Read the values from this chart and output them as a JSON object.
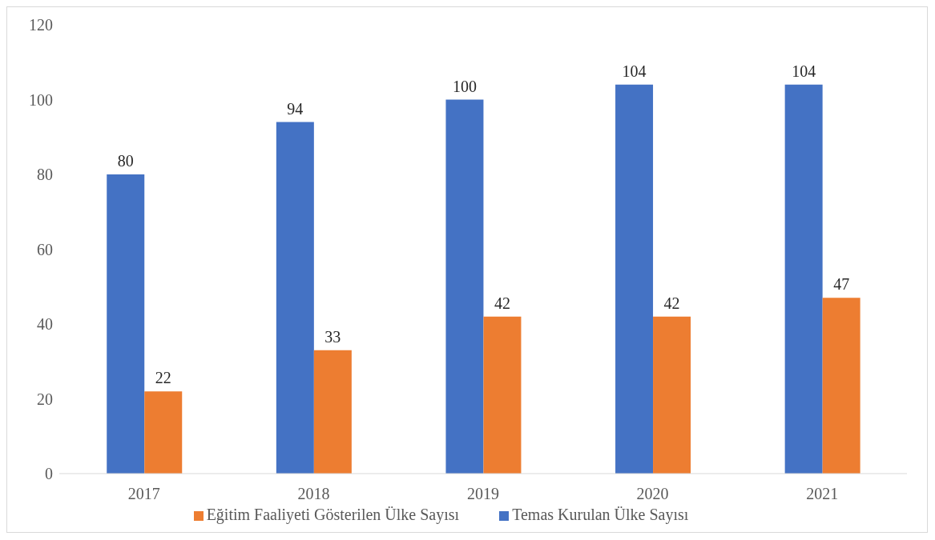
{
  "chart_data": {
    "type": "bar",
    "categories": [
      "2017",
      "2018",
      "2019",
      "2020",
      "2021"
    ],
    "series": [
      {
        "name": "Temas Kurulan Ülke Sayısı",
        "color": "#4472c4",
        "values": [
          80,
          94,
          100,
          104,
          104
        ]
      },
      {
        "name": "Eğitim Faaliyeti Gösterilen Ülke Sayısı",
        "color": "#ed7d31",
        "values": [
          22,
          33,
          42,
          42,
          47
        ]
      }
    ],
    "ylim": [
      0,
      120
    ],
    "yticks": [
      0,
      20,
      40,
      60,
      80,
      100,
      120
    ],
    "data_labels": true,
    "legend": "bottom"
  }
}
